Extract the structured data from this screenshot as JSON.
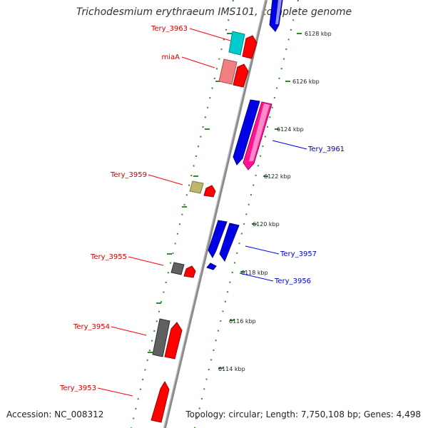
{
  "title": "Trichodesmium erythraeum IMS101, complete genome",
  "accession": "Accession: NC_008312",
  "topology": "Topology: circular; Length: 7,750,108 bp; Genes: 4,498",
  "colors": {
    "forward_label": "#cc0000",
    "reverse_label": "#0000cc",
    "ticks": "#2e8b2e",
    "backbone": "#8c8c8c"
  },
  "ticks": [
    {
      "label": "6128 kbp",
      "kbp": 6128
    },
    {
      "label": "6126 kbp",
      "kbp": 6126
    },
    {
      "label": "6124 kbp",
      "kbp": 6124
    },
    {
      "label": "6122 kbp",
      "kbp": 6122
    },
    {
      "label": "6120 kbp",
      "kbp": 6120
    },
    {
      "label": "6118 kbp",
      "kbp": 6118
    },
    {
      "label": "6116 kbp",
      "kbp": 6116
    },
    {
      "label": "6114 kbp",
      "kbp": 6114
    }
  ],
  "forward_labels": [
    "Tery_3963",
    "miaA",
    "Tery_3959",
    "Tery_3955",
    "Tery_3954",
    "Tery_3953"
  ],
  "reverse_labels": [
    "Tery_3961",
    "Tery_3957",
    "Tery_3956"
  ]
}
